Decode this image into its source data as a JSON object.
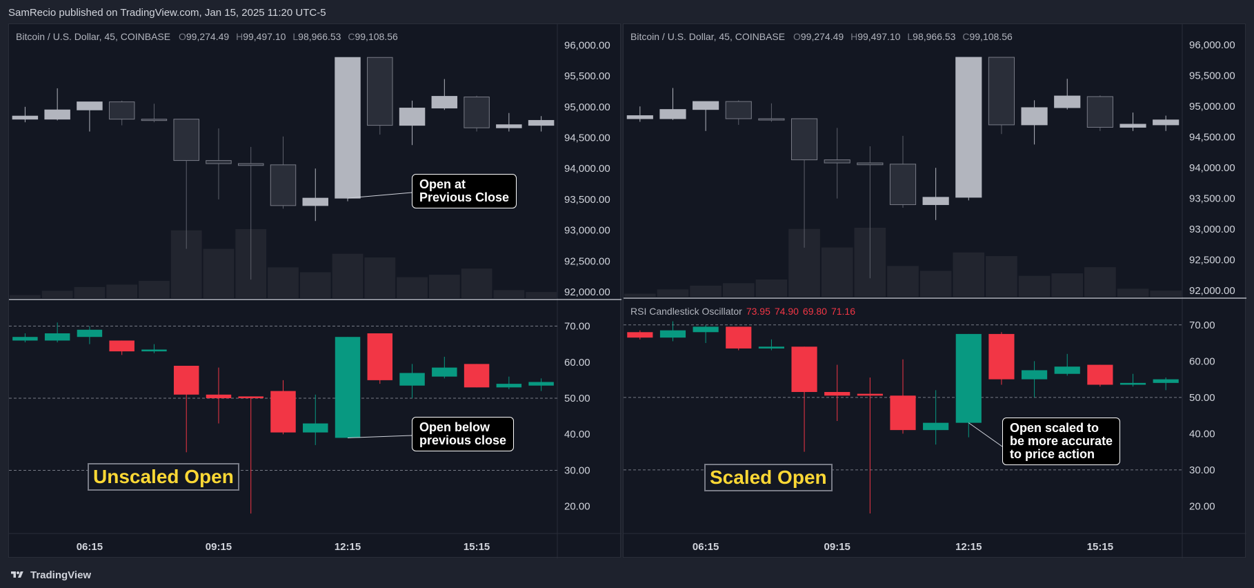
{
  "header": {
    "publisher": "SamRecio published on TradingView.com, Jan 15, 2025 11:20 UTC-5"
  },
  "footer": {
    "brand": "TradingView"
  },
  "colors": {
    "up": "#089981",
    "down": "#f23645",
    "price_up": "#b2b5be",
    "price_down": "#2a2e39"
  },
  "legend": {
    "symbol": "Bitcoin / U.S. Dollar, 45, COINBASE",
    "o_label": "O",
    "o_value": "99,274.49",
    "h_label": "H",
    "h_value": "99,497.10",
    "l_label": "L",
    "l_value": "98,966.53",
    "c_label": "C",
    "c_value": "99,108.56"
  },
  "rsi_legend": {
    "name": "RSI Candlestick Oscillator",
    "v1": "73.95",
    "v2": "74.90",
    "v3": "69.80",
    "v4": "71.16"
  },
  "left_panel": {
    "callout_top": "Open at\nPrevious Close",
    "callout_bottom": "Open below\nprevious close",
    "tag": "Unscaled Open"
  },
  "right_panel": {
    "callout_bottom": "Open scaled to\nbe more accurate\nto price action",
    "tag": "Scaled Open"
  },
  "chart_data": [
    {
      "type": "candlestick",
      "panel": "price",
      "price_axis_ticks": [
        "96,000.00",
        "95,500.00",
        "95,000.00",
        "94,500.00",
        "94,000.00",
        "93,500.00",
        "93,000.00",
        "92,500.00",
        "92,000.00"
      ],
      "ylim": [
        91900,
        96250
      ],
      "time_ticks": [
        "06:15",
        "09:15",
        "12:15",
        "15:15"
      ],
      "time_tick_index": [
        2,
        6,
        10,
        14
      ],
      "candles": [
        {
          "o": 94800,
          "h": 95000,
          "l": 94750,
          "c": 94850
        },
        {
          "o": 94800,
          "h": 95300,
          "l": 94780,
          "c": 94950
        },
        {
          "o": 94950,
          "h": 95050,
          "l": 94600,
          "c": 95080
        },
        {
          "o": 95080,
          "h": 95100,
          "l": 94700,
          "c": 94800
        },
        {
          "o": 94800,
          "h": 95050,
          "l": 94750,
          "c": 94790
        },
        {
          "o": 94800,
          "h": 94800,
          "l": 92700,
          "c": 94130
        },
        {
          "o": 94130,
          "h": 94650,
          "l": 93500,
          "c": 94080
        },
        {
          "o": 94080,
          "h": 94350,
          "l": 92200,
          "c": 94050
        },
        {
          "o": 94060,
          "h": 94520,
          "l": 93350,
          "c": 93400
        },
        {
          "o": 93400,
          "h": 94000,
          "l": 93150,
          "c": 93520
        },
        {
          "o": 93520,
          "h": 95800,
          "l": 93470,
          "c": 95800
        },
        {
          "o": 95800,
          "h": 95800,
          "l": 94550,
          "c": 94700
        },
        {
          "o": 94700,
          "h": 95100,
          "l": 94380,
          "c": 94980
        },
        {
          "o": 94980,
          "h": 95450,
          "l": 94950,
          "c": 95170
        },
        {
          "o": 95160,
          "h": 95180,
          "l": 94600,
          "c": 94660
        },
        {
          "o": 94660,
          "h": 94900,
          "l": 94600,
          "c": 94710
        },
        {
          "o": 94700,
          "h": 94850,
          "l": 94600,
          "c": 94780
        }
      ],
      "volume": [
        5,
        12,
        18,
        22,
        28,
        110,
        80,
        112,
        50,
        42,
        72,
        66,
        34,
        38,
        48,
        13,
        10
      ]
    },
    {
      "type": "candlestick",
      "panel": "rsi",
      "variant": "unscaled",
      "axis_ticks": [
        "70.00",
        "60.00",
        "50.00",
        "40.00",
        "30.00",
        "20.00"
      ],
      "ylim": [
        14,
        77
      ],
      "bands": [
        70,
        50,
        30
      ],
      "candles": [
        {
          "o": 66,
          "h": 68,
          "l": 65.5,
          "c": 67
        },
        {
          "o": 66,
          "h": 71,
          "l": 65.5,
          "c": 68
        },
        {
          "o": 67,
          "h": 70,
          "l": 65,
          "c": 69
        },
        {
          "o": 66,
          "h": 66,
          "l": 62,
          "c": 63
        },
        {
          "o": 63,
          "h": 65,
          "l": 62.5,
          "c": 63.5
        },
        {
          "o": 59,
          "h": 59,
          "l": 35,
          "c": 51
        },
        {
          "o": 51,
          "h": 58.5,
          "l": 43,
          "c": 50
        },
        {
          "o": 50.5,
          "h": 50.5,
          "l": 18,
          "c": 50
        },
        {
          "o": 52,
          "h": 55,
          "l": 40,
          "c": 40.5
        },
        {
          "o": 40.5,
          "h": 51,
          "l": 37,
          "c": 43
        },
        {
          "o": 39,
          "h": 67,
          "l": 39,
          "c": 67
        },
        {
          "o": 68,
          "h": 68,
          "l": 54,
          "c": 55
        },
        {
          "o": 53.5,
          "h": 59.5,
          "l": 50,
          "c": 57
        },
        {
          "o": 56,
          "h": 61.5,
          "l": 55.5,
          "c": 58.5
        },
        {
          "o": 59.5,
          "h": 59.5,
          "l": 53,
          "c": 53
        },
        {
          "o": 53,
          "h": 56,
          "l": 52.5,
          "c": 54
        },
        {
          "o": 53.5,
          "h": 55.5,
          "l": 52,
          "c": 54.5
        }
      ]
    },
    {
      "type": "candlestick",
      "panel": "rsi",
      "variant": "scaled",
      "axis_ticks": [
        "70.00",
        "60.00",
        "50.00",
        "40.00",
        "30.00",
        "20.00"
      ],
      "ylim": [
        14,
        77
      ],
      "bands": [
        70,
        50,
        30
      ],
      "candles": [
        {
          "o": 68,
          "h": 68.5,
          "l": 66,
          "c": 66.5
        },
        {
          "o": 66.5,
          "h": 71,
          "l": 65.5,
          "c": 68.5
        },
        {
          "o": 68,
          "h": 70,
          "l": 65,
          "c": 69.5
        },
        {
          "o": 69.5,
          "h": 69.5,
          "l": 63,
          "c": 63.5
        },
        {
          "o": 63.5,
          "h": 66,
          "l": 63,
          "c": 64
        },
        {
          "o": 64,
          "h": 64,
          "l": 35,
          "c": 51.5
        },
        {
          "o": 51.5,
          "h": 59,
          "l": 43.5,
          "c": 50.5
        },
        {
          "o": 51,
          "h": 55.5,
          "l": 18,
          "c": 50.5
        },
        {
          "o": 50.5,
          "h": 60.5,
          "l": 40,
          "c": 41
        },
        {
          "o": 41,
          "h": 52,
          "l": 37,
          "c": 43
        },
        {
          "o": 43,
          "h": 67.5,
          "l": 39,
          "c": 67.5
        },
        {
          "o": 67.5,
          "h": 68,
          "l": 53.5,
          "c": 55
        },
        {
          "o": 55,
          "h": 60,
          "l": 50,
          "c": 57.5
        },
        {
          "o": 56.5,
          "h": 62,
          "l": 56,
          "c": 58.5
        },
        {
          "o": 59,
          "h": 59,
          "l": 53,
          "c": 53.5
        },
        {
          "o": 53.5,
          "h": 56.5,
          "l": 53,
          "c": 54
        },
        {
          "o": 54,
          "h": 55.5,
          "l": 52,
          "c": 55
        }
      ]
    }
  ]
}
